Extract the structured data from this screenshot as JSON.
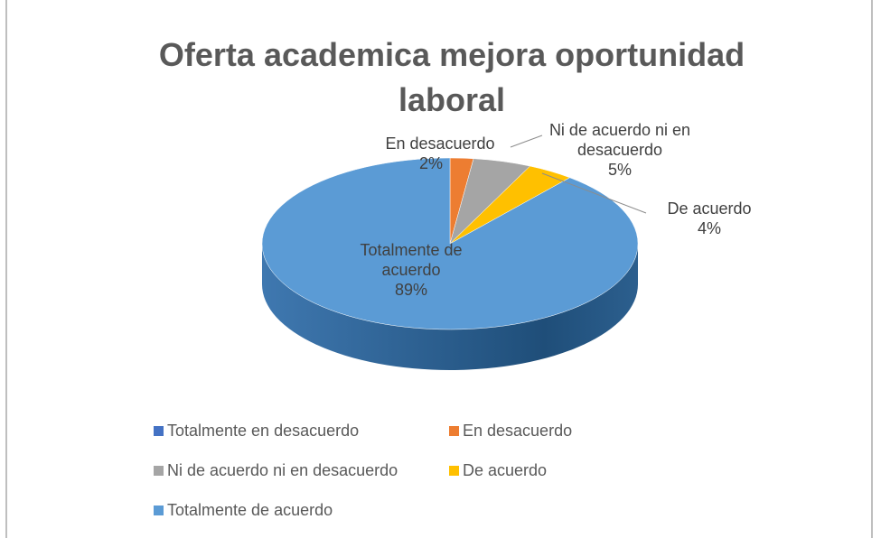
{
  "chart_data": {
    "type": "pie",
    "title": "Oferta academica mejora oportunidad laboral",
    "categories": [
      "Totalmente en desacuerdo",
      "En desacuerdo",
      "Ni de acuerdo ni en desacuerdo",
      "De acuerdo",
      "Totalmente de acuerdo"
    ],
    "values": [
      0,
      2,
      5,
      4,
      89
    ],
    "value_labels": [
      null,
      "2%",
      "5%",
      "4%",
      "89%"
    ],
    "colors": [
      "#4472c4",
      "#ed7d31",
      "#a5a5a5",
      "#ffc000",
      "#5b9bd5"
    ],
    "legend": "bottom"
  }
}
